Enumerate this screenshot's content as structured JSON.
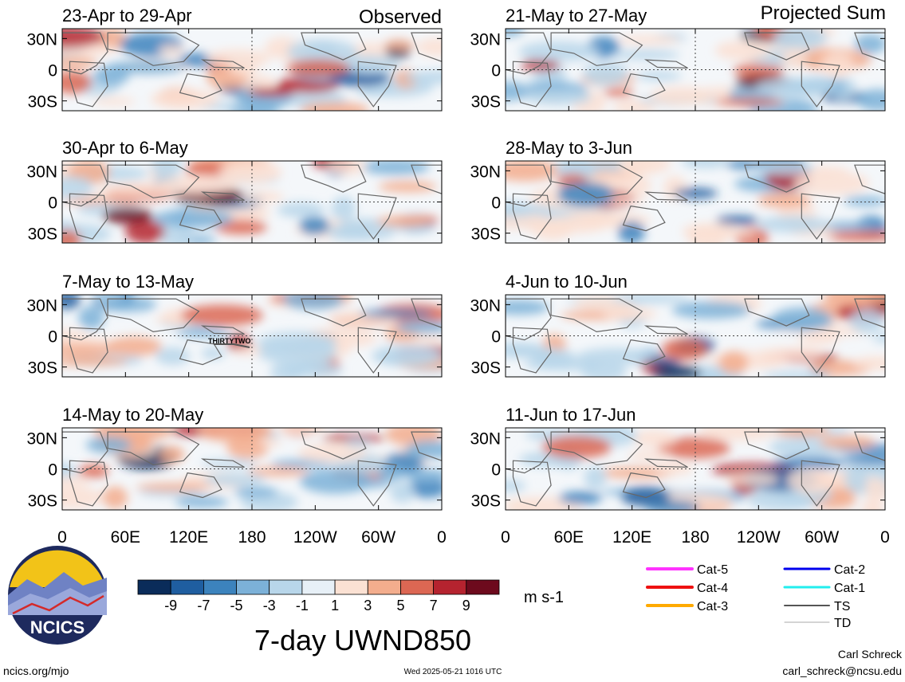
{
  "figure": {
    "title": "7-day UWND850",
    "units": "m s-1",
    "observed_label": "Observed",
    "projected_label": "Projected Sum",
    "annotation": "THIRTYTWO",
    "credit_name": "Carl Schreck",
    "credit_email": "carl_schreck@ncsu.edu",
    "website": "ncics.org/mjo",
    "timestamp": "Wed 2025-05-21 1016 UTC",
    "logo_text": "NCICS"
  },
  "chart_data": {
    "type": "heatmap",
    "variable": "7-day UWND850",
    "units": "m s-1",
    "x_ticks": [
      "0",
      "60E",
      "120E",
      "180",
      "120W",
      "60W",
      "0"
    ],
    "y_ticks": [
      "30N",
      "0",
      "30S"
    ],
    "colorbar": {
      "ticks": [
        "-9",
        "-7",
        "-5",
        "-3",
        "-1",
        "1",
        "3",
        "5",
        "7",
        "9"
      ],
      "colors": [
        "#0a2c5a",
        "#1f5ea0",
        "#3c83bd",
        "#7cb1d8",
        "#b8d6ea",
        "#e7f0f7",
        "#fbe1d3",
        "#f3ad8d",
        "#dc6753",
        "#b5232f",
        "#6d0a1d"
      ]
    },
    "panels": [
      {
        "period": "23-Apr to 29-Apr",
        "group": "Observed"
      },
      {
        "period": "30-Apr to 6-May",
        "group": "Observed"
      },
      {
        "period": "7-May to 13-May",
        "group": "Observed"
      },
      {
        "period": "14-May to 20-May",
        "group": "Observed"
      },
      {
        "period": "21-May to 27-May",
        "group": "Projected Sum"
      },
      {
        "period": "28-May to 3-Jun",
        "group": "Projected Sum"
      },
      {
        "period": "4-Jun to 10-Jun",
        "group": "Projected Sum"
      },
      {
        "period": "11-Jun to 17-Jun",
        "group": "Projected Sum"
      }
    ],
    "legend": [
      {
        "label": "Cat-5",
        "color": "#ff33ff"
      },
      {
        "label": "Cat-4",
        "color": "#ee1111"
      },
      {
        "label": "Cat-3",
        "color": "#ffaa00"
      },
      {
        "label": "Cat-2",
        "color": "#0000ee"
      },
      {
        "label": "Cat-1",
        "color": "#22eeee"
      },
      {
        "label": "TS",
        "color": "#555555"
      },
      {
        "label": "TD",
        "color": "#aaaaaa"
      }
    ]
  }
}
